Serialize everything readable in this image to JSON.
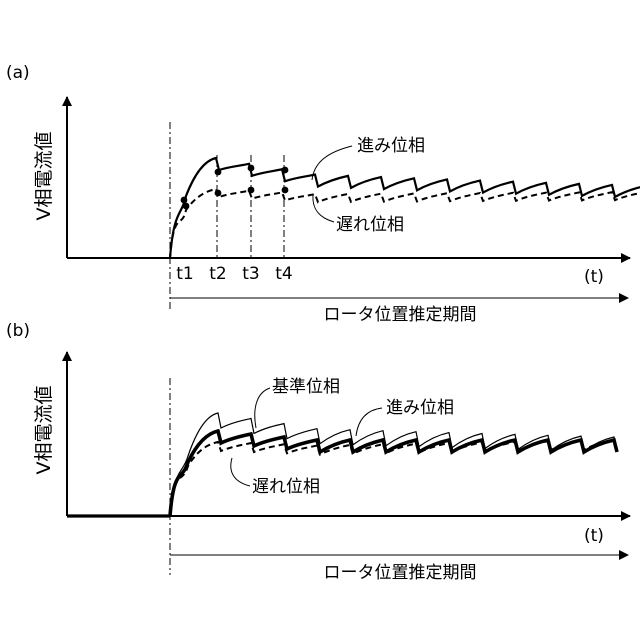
{
  "panel_a": {
    "tag": "(a)",
    "ylabel": "V相電流値",
    "time_label": "(t)",
    "period_label": "ロータ位置推定期間",
    "ticks": [
      "t1",
      "t2",
      "t3",
      "t4"
    ],
    "lead_label": "進み位相",
    "lag_label": "遅れ位相"
  },
  "panel_b": {
    "tag": "(b)",
    "ylabel": "V相電流値",
    "time_label": "(t)",
    "period_label": "ロータ位置推定期間",
    "ref_label": "基準位相",
    "lead_label": "進み位相",
    "lag_label": "遅れ位相"
  }
}
